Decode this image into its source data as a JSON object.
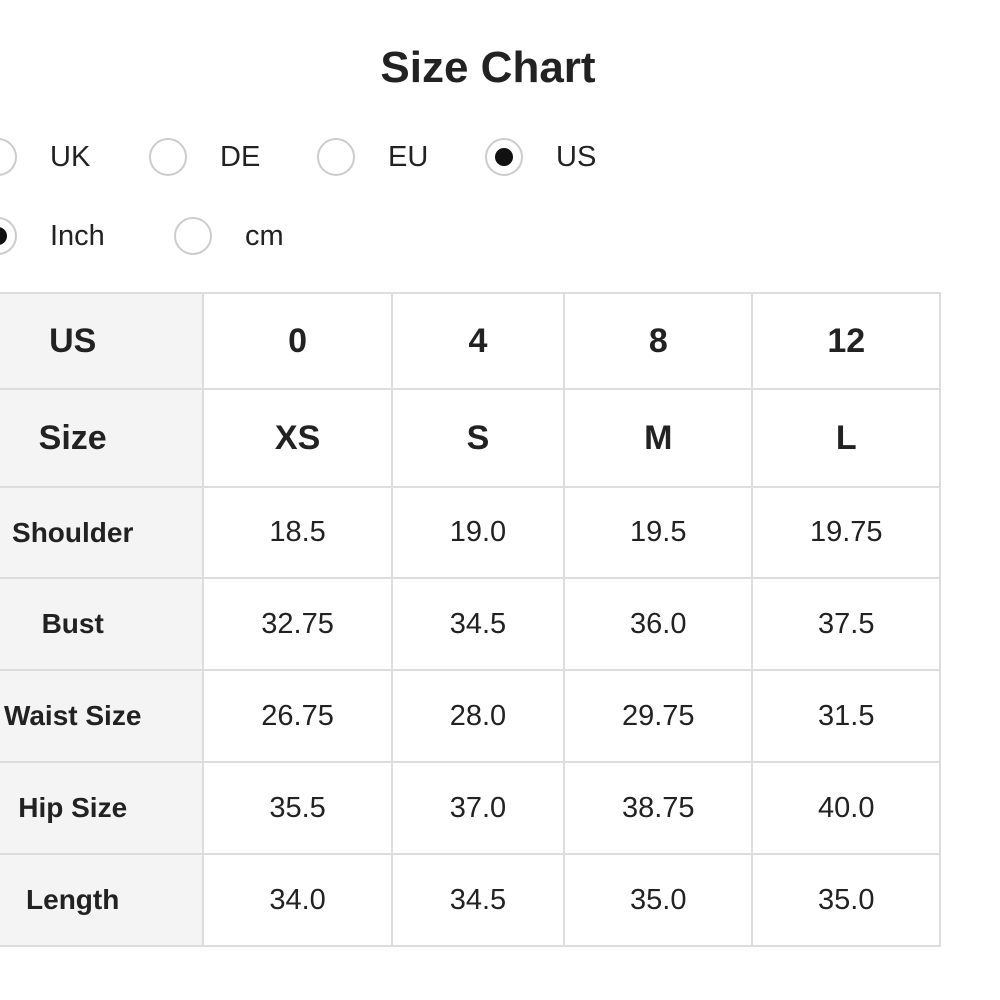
{
  "header": {
    "title": "Size Chart"
  },
  "region_options": [
    {
      "label": "UK",
      "selected": false
    },
    {
      "label": "DE",
      "selected": false
    },
    {
      "label": "EU",
      "selected": false
    },
    {
      "label": "US",
      "selected": true
    }
  ],
  "unit_options": [
    {
      "label": "Inch",
      "selected": true
    },
    {
      "label": "cm",
      "selected": false
    }
  ],
  "table": {
    "rows": [
      [
        "US",
        "0",
        "4",
        "8",
        "12"
      ],
      [
        "Size",
        "XS",
        "S",
        "M",
        "L"
      ],
      [
        "Shoulder",
        "18.5",
        "19.0",
        "19.5",
        "19.75"
      ],
      [
        "Bust",
        "32.75",
        "34.5",
        "36.0",
        "37.5"
      ],
      [
        "Waist Size",
        "26.75",
        "28.0",
        "29.75",
        "31.5"
      ],
      [
        "Hip Size",
        "35.5",
        "37.0",
        "38.75",
        "40.0"
      ],
      [
        "Length",
        "34.0",
        "34.5",
        "35.0",
        "35.0"
      ]
    ]
  }
}
